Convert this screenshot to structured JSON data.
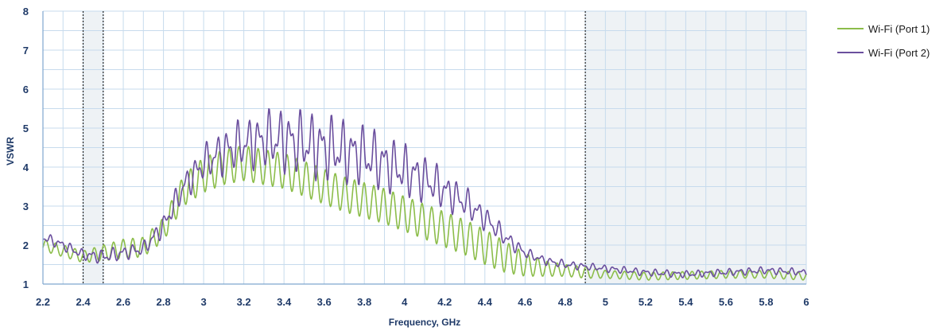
{
  "chart_data": {
    "type": "line",
    "xlabel": "Frequency, GHz",
    "ylabel": "VSWR",
    "xlim": [
      2.2,
      6
    ],
    "ylim": [
      1,
      8
    ],
    "x_ticks": [
      "2.2",
      "2.4",
      "2.6",
      "2.8",
      "3",
      "3.2",
      "3.4",
      "3.6",
      "3.8",
      "4",
      "4.2",
      "4.4",
      "4.6",
      "4.8",
      "5",
      "5.2",
      "5.4",
      "5.6",
      "5.8",
      "6"
    ],
    "y_ticks": [
      "1",
      "2",
      "3",
      "4",
      "5",
      "6",
      "7",
      "8"
    ],
    "grid": true,
    "legend_position": "right",
    "shaded_bands": [
      {
        "x_start": 2.4,
        "x_end": 2.5
      },
      {
        "x_start": 4.9,
        "x_end": 6.0
      }
    ],
    "series": [
      {
        "name": "Wi-Fi  (Port 1)",
        "color": "#8cbd4a",
        "x": [
          2.2,
          2.3,
          2.4,
          2.5,
          2.6,
          2.7,
          2.8,
          2.9,
          3.0,
          3.1,
          3.2,
          3.3,
          3.4,
          3.5,
          3.6,
          3.7,
          3.8,
          3.9,
          4.0,
          4.1,
          4.2,
          4.3,
          4.4,
          4.5,
          4.6,
          4.7,
          4.8,
          4.9,
          5.0,
          5.2,
          5.4,
          5.6,
          5.8,
          6.0
        ],
        "y": [
          2.0,
          1.85,
          1.7,
          1.8,
          1.9,
          1.95,
          2.4,
          3.4,
          3.8,
          4.0,
          4.1,
          4.0,
          3.9,
          3.7,
          3.5,
          3.3,
          3.15,
          3.0,
          2.8,
          2.6,
          2.4,
          2.2,
          1.95,
          1.7,
          1.5,
          1.4,
          1.35,
          1.3,
          1.25,
          1.2,
          1.22,
          1.25,
          1.25,
          1.2
        ],
        "amplitude": [
          0.15,
          0.15,
          0.15,
          0.2,
          0.25,
          0.25,
          0.3,
          0.4,
          0.45,
          0.45,
          0.45,
          0.45,
          0.45,
          0.45,
          0.45,
          0.45,
          0.45,
          0.45,
          0.45,
          0.45,
          0.45,
          0.45,
          0.45,
          0.4,
          0.3,
          0.2,
          0.15,
          0.15,
          0.1,
          0.1,
          0.1,
          0.1,
          0.1,
          0.1
        ]
      },
      {
        "name": "Wi-Fi (Port 2)",
        "color": "#6b4f9e",
        "x": [
          2.2,
          2.3,
          2.4,
          2.5,
          2.6,
          2.7,
          2.8,
          2.9,
          3.0,
          3.1,
          3.2,
          3.3,
          3.4,
          3.5,
          3.6,
          3.7,
          3.8,
          3.9,
          4.0,
          4.1,
          4.2,
          4.3,
          4.4,
          4.5,
          4.6,
          4.7,
          4.8,
          4.9,
          5.0,
          5.2,
          5.4,
          5.6,
          5.8,
          6.0
        ],
        "y": [
          2.2,
          2.0,
          1.75,
          1.7,
          1.8,
          1.9,
          2.5,
          3.5,
          4.1,
          4.4,
          4.6,
          4.7,
          4.7,
          4.6,
          4.5,
          4.4,
          4.3,
          4.1,
          3.9,
          3.7,
          3.4,
          3.1,
          2.7,
          2.2,
          1.8,
          1.6,
          1.5,
          1.45,
          1.4,
          1.3,
          1.25,
          1.3,
          1.35,
          1.3
        ],
        "amplitude": [
          0.15,
          0.15,
          0.15,
          0.2,
          0.2,
          0.2,
          0.3,
          0.4,
          0.5,
          0.65,
          0.7,
          0.8,
          0.9,
          0.9,
          0.95,
          0.9,
          0.85,
          0.8,
          0.75,
          0.65,
          0.55,
          0.45,
          0.35,
          0.25,
          0.15,
          0.12,
          0.12,
          0.1,
          0.1,
          0.1,
          0.1,
          0.1,
          0.1,
          0.1
        ]
      }
    ]
  }
}
